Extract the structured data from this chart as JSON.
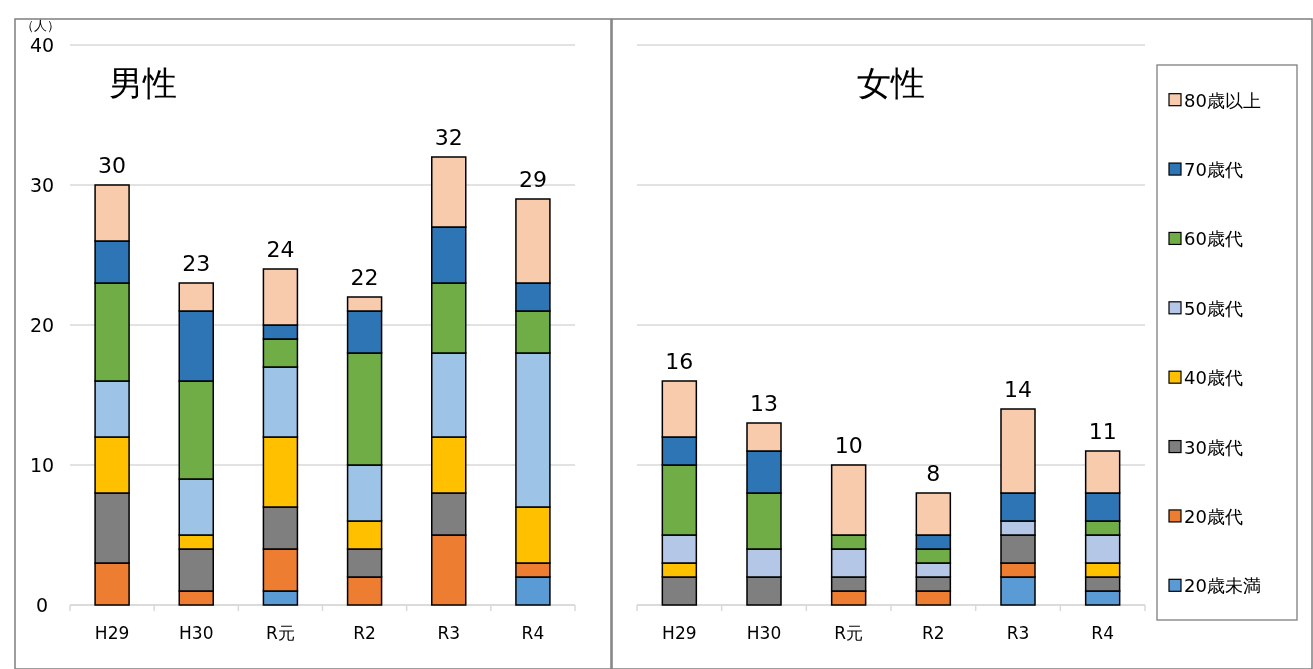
{
  "chart_data": [
    {
      "type": "bar",
      "stacked": true,
      "title": "男性",
      "ylabel": "（人）",
      "categories": [
        "H29",
        "H30",
        "R元",
        "R2",
        "R3",
        "R4"
      ],
      "ylim": [
        0,
        40
      ],
      "yticks": [
        0,
        10,
        20,
        30,
        40
      ],
      "grid": "y",
      "legend": false,
      "series": [
        {
          "color": "#5b9bd5",
          "values": [
            0,
            0,
            1,
            0,
            0,
            2
          ]
        },
        {
          "color": "#ed7d31",
          "values": [
            3,
            1,
            3,
            2,
            5,
            1
          ]
        },
        {
          "color": "#7f7f7f",
          "values": [
            5,
            3,
            3,
            2,
            3,
            0
          ]
        },
        {
          "color": "#ffc000",
          "values": [
            4,
            1,
            5,
            2,
            4,
            4
          ]
        },
        {
          "color": "#9dc3e6",
          "values": [
            4,
            4,
            5,
            4,
            6,
            11
          ]
        },
        {
          "color": "#70ad47",
          "values": [
            7,
            7,
            2,
            8,
            5,
            3
          ]
        },
        {
          "color": "#2e75b6",
          "values": [
            3,
            5,
            1,
            3,
            4,
            2
          ]
        },
        {
          "color": "#f8cbad",
          "values": [
            4,
            2,
            4,
            1,
            5,
            6
          ]
        }
      ],
      "totals": [
        "30",
        "23",
        "24",
        "22",
        "32",
        "29"
      ]
    },
    {
      "type": "bar",
      "stacked": true,
      "title": "女性",
      "categories": [
        "H29",
        "H30",
        "R元",
        "R2",
        "R3",
        "R4"
      ],
      "ylim": [
        0,
        40
      ],
      "yticks": [
        {
          "value": 0,
          "label": null
        },
        {
          "value": 10,
          "label": null
        },
        {
          "value": 20,
          "label": null
        },
        {
          "value": 30,
          "label": null
        },
        {
          "value": 40,
          "label": null
        }
      ],
      "grid": "y",
      "legend": "right",
      "tick_labels": "x",
      "series": [
        {
          "name": "20歳未満",
          "color": "#5b9bd5",
          "values": [
            0,
            0,
            0,
            0,
            2,
            1
          ]
        },
        {
          "name": "20歳代",
          "color": "#ed7d31",
          "values": [
            0,
            0,
            1,
            1,
            1,
            0
          ]
        },
        {
          "name": "30歳代",
          "color": "#7f7f7f",
          "values": [
            2,
            2,
            1,
            1,
            2,
            1
          ]
        },
        {
          "name": "40歳代",
          "color": "#ffc000",
          "values": [
            1,
            0,
            0,
            0,
            0,
            1
          ]
        },
        {
          "name": "50歳代",
          "color": "#b4c7e7",
          "values": [
            2,
            2,
            2,
            1,
            1,
            2
          ]
        },
        {
          "name": "60歳代",
          "color": "#70ad47",
          "values": [
            5,
            4,
            1,
            1,
            0,
            1
          ]
        },
        {
          "name": "70歳代",
          "color": "#2e75b6",
          "values": [
            2,
            3,
            0,
            1,
            2,
            2
          ]
        },
        {
          "name": "80歳以上",
          "color": "#f8cbad",
          "values": [
            4,
            2,
            5,
            3,
            6,
            3
          ]
        }
      ],
      "totals": [
        "16",
        "13",
        "10",
        "8",
        "14",
        "11"
      ]
    }
  ]
}
